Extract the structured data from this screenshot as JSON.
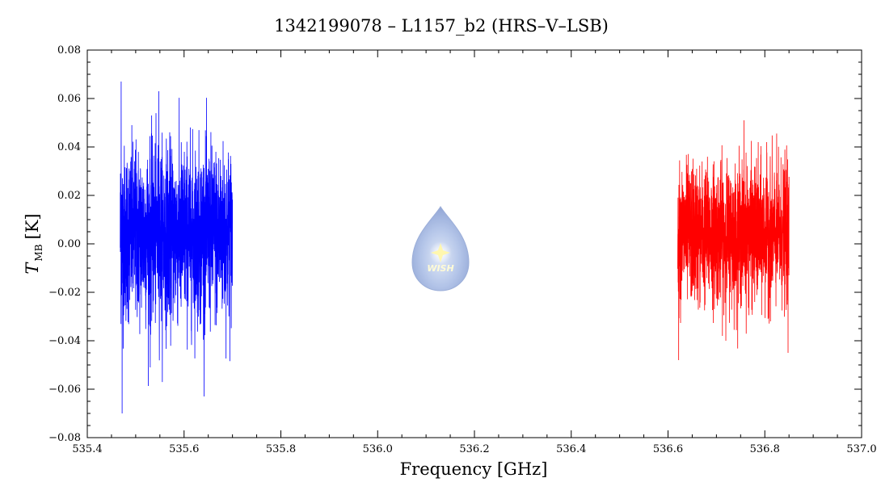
{
  "chart_data": {
    "type": "line",
    "title": "1342199078 – L1157_b2 (HRS–V–LSB)",
    "xlabel": "Frequency [GHz]",
    "ylabel_main": "T",
    "ylabel_sub": "MB",
    "ylabel_unit": "[K]",
    "xlim": [
      535.4,
      537.0
    ],
    "ylim": [
      -0.08,
      0.08
    ],
    "x_ticks": [
      "535.4",
      "535.6",
      "535.8",
      "536.0",
      "536.2",
      "536.4",
      "536.6",
      "536.8",
      "537.0"
    ],
    "y_ticks": [
      "−0.08",
      "−0.06",
      "−0.04",
      "−0.02",
      "0.00",
      "0.02",
      "0.04",
      "0.06",
      "0.08"
    ],
    "grid": false,
    "series": [
      {
        "color": "#0000ff",
        "x_range": [
          535.468,
          535.7
        ],
        "noise_envelope": [
          -0.07,
          0.067
        ],
        "typical_sigma": 0.018,
        "peaks": [
          {
            "x": 535.47,
            "y": 0.067
          },
          {
            "x": 535.472,
            "y": -0.07
          },
          {
            "x": 535.548,
            "y": 0.063
          },
          {
            "x": 535.53,
            "y": -0.051
          }
        ]
      },
      {
        "color": "#ff0000",
        "x_range": [
          536.62,
          536.85
        ],
        "noise_envelope": [
          -0.048,
          0.051
        ],
        "typical_sigma": 0.014,
        "peaks": [
          {
            "x": 536.622,
            "y": -0.048
          },
          {
            "x": 536.757,
            "y": 0.051
          },
          {
            "x": 536.848,
            "y": -0.045
          }
        ]
      }
    ]
  },
  "watermark": {
    "label": "WISH"
  }
}
